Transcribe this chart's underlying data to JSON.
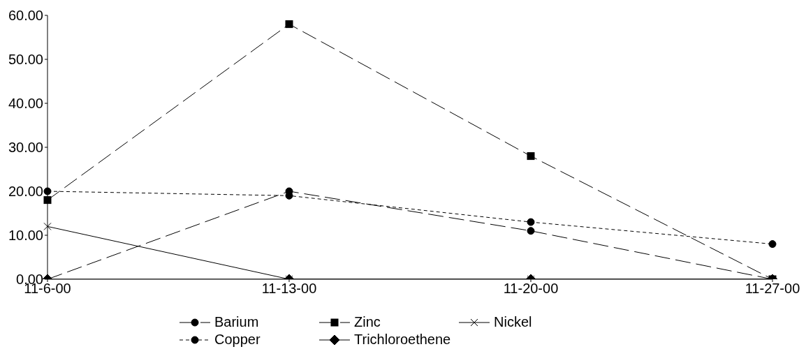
{
  "chart_data": {
    "type": "line",
    "categories": [
      "11-6-00",
      "11-13-00",
      "11-20-00",
      "11-27-00"
    ],
    "series": [
      {
        "name": "Barium",
        "color": "#000000",
        "values": [
          0,
          20,
          11,
          0
        ],
        "marker": "circle",
        "line_style": "dashed"
      },
      {
        "name": "Zinc",
        "color": "#000000",
        "values": [
          18,
          58,
          28,
          0
        ],
        "marker": "square",
        "line_style": "dashed"
      },
      {
        "name": "Nickel",
        "color": "#000000",
        "values": [
          12,
          0,
          0,
          0
        ],
        "marker": "cross",
        "line_style": "solid"
      },
      {
        "name": "Copper",
        "color": "#000000",
        "values": [
          20,
          19,
          13,
          8
        ],
        "marker": "circle",
        "line_style": "dotted"
      },
      {
        "name": "Trichloroethene",
        "color": "#000000",
        "values": [
          0,
          0,
          0,
          0
        ],
        "marker": "diamond",
        "line_style": "solid"
      }
    ],
    "ylim": [
      0,
      60
    ],
    "yticks": [
      {
        "value": 0,
        "label": "0.00"
      },
      {
        "value": 10,
        "label": "10.00"
      },
      {
        "value": 20,
        "label": "20.00"
      },
      {
        "value": 30,
        "label": "30.00"
      },
      {
        "value": 40,
        "label": "40.00"
      },
      {
        "value": 50,
        "label": "50.00"
      },
      {
        "value": 60,
        "label": "60.00"
      }
    ],
    "grid": false,
    "legend": "bottom"
  }
}
